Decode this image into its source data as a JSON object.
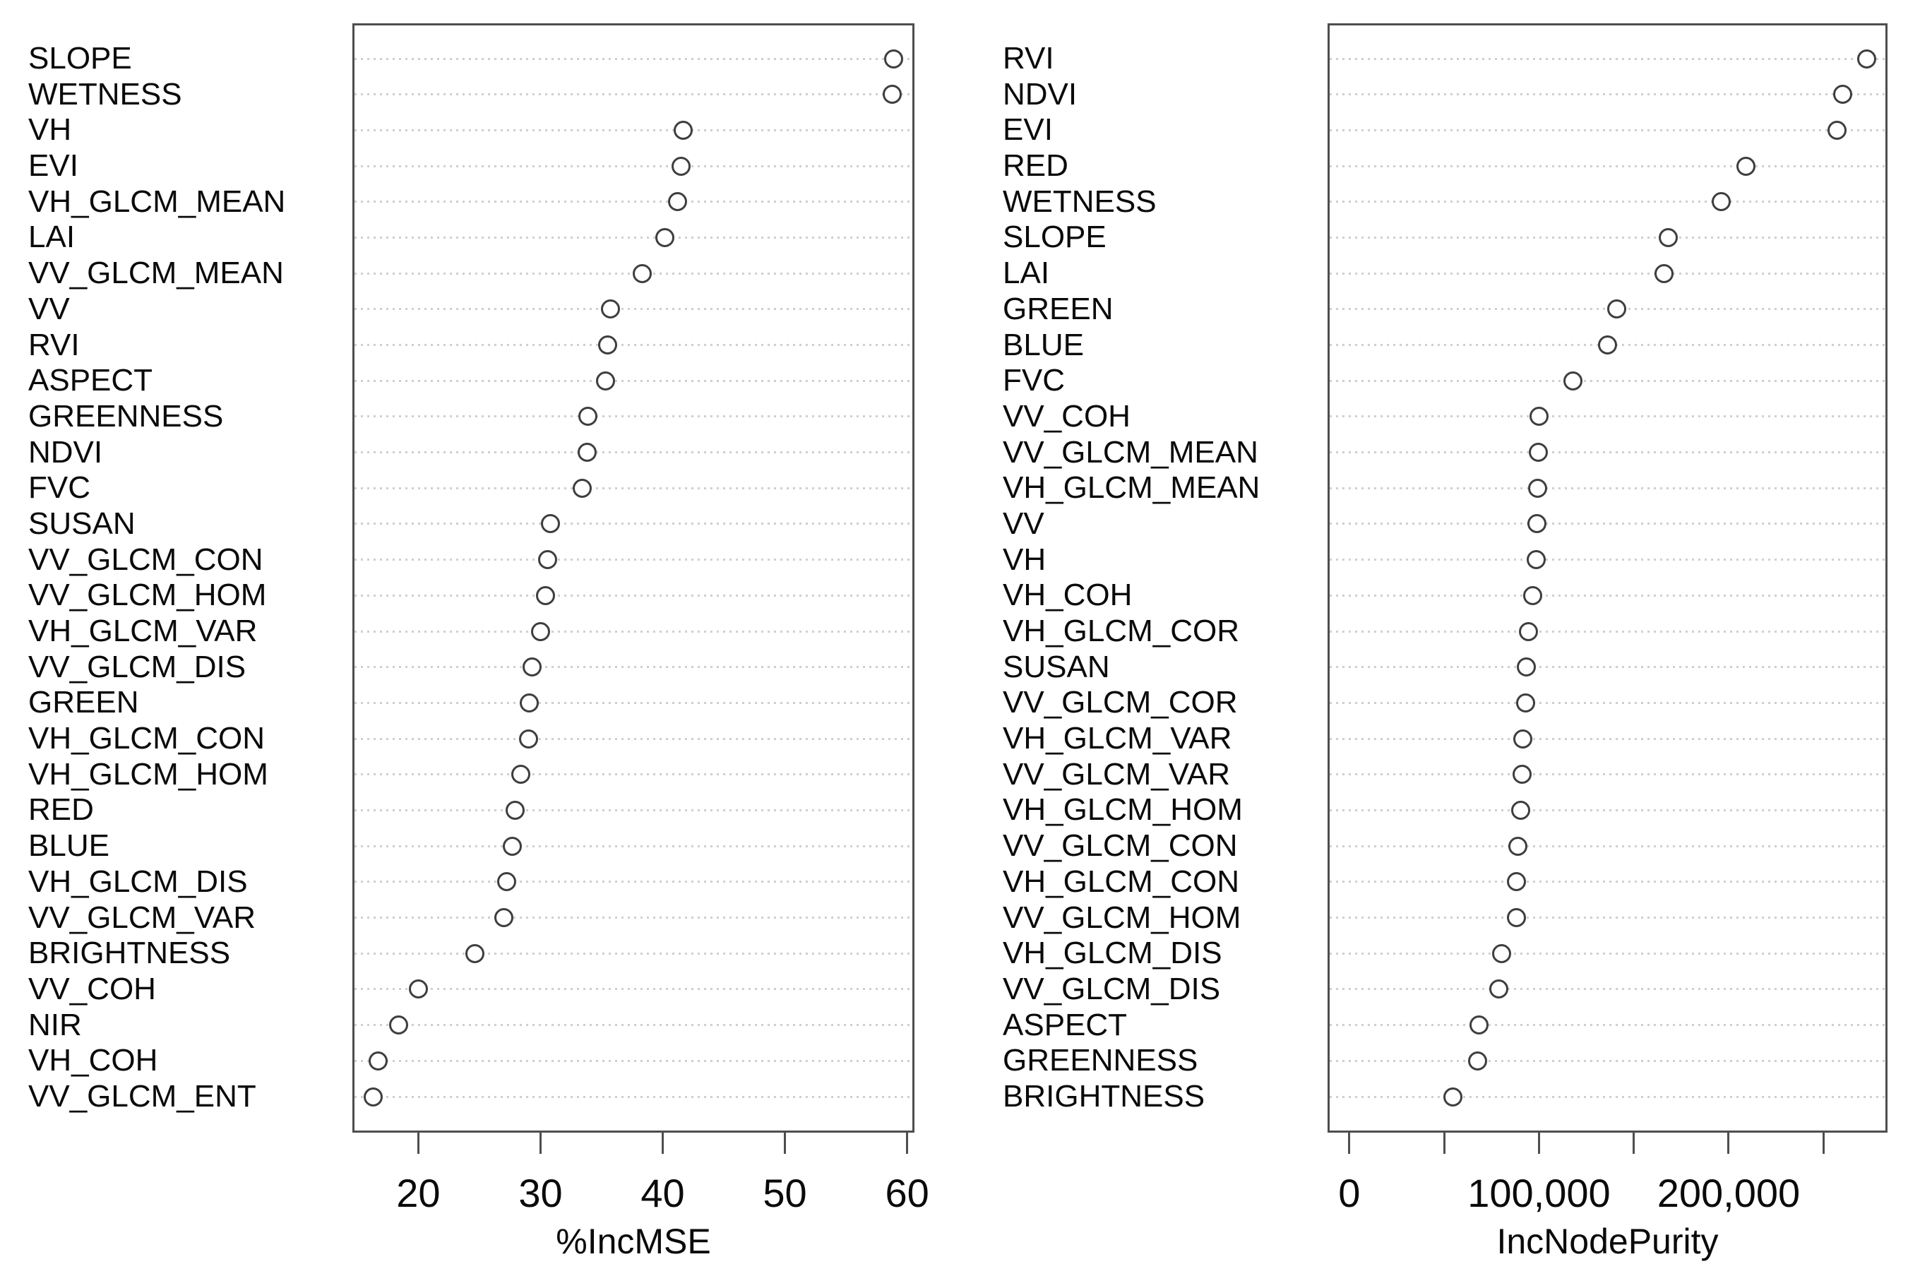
{
  "figure": {
    "description": "Random forest variable importance dot plots",
    "background": "#ffffff",
    "point_stroke_color": "#3e3e3e",
    "grid_color": "#cfcfcf",
    "box_color": "#4e4e4e",
    "text_color": "#0a0a0a"
  },
  "chart_data": [
    {
      "type": "scatter",
      "title": "",
      "xlabel": "%IncMSE",
      "ylabel": "",
      "legend": "none",
      "grid": "horizontal-dotted",
      "xlim": [
        14.6,
        60.6
      ],
      "xticks": {
        "values": [
          20,
          30,
          40,
          50,
          60
        ],
        "labels": [
          "20",
          "30",
          "40",
          "50",
          "60"
        ]
      },
      "categories": [
        "SLOPE",
        "WETNESS",
        "VH",
        "EVI",
        "VH_GLCM_MEAN",
        "LAI",
        "VV_GLCM_MEAN",
        "VV",
        "RVI",
        "ASPECT",
        "GREENNESS",
        "NDVI",
        "FVC",
        "SUSAN",
        "VV_GLCM_CON",
        "VV_GLCM_HOM",
        "VH_GLCM_VAR",
        "VV_GLCM_DIS",
        "GREEN",
        "VH_GLCM_CON",
        "VH_GLCM_HOM",
        "RED",
        "BLUE",
        "VH_GLCM_DIS",
        "VV_GLCM_VAR",
        "BRIGHTNESS",
        "VV_COH",
        "NIR",
        "VH_COH",
        "VV_GLCM_ENT"
      ],
      "values": [
        58.9,
        58.8,
        41.7,
        41.5,
        41.2,
        40.2,
        38.3,
        35.7,
        35.5,
        35.3,
        33.9,
        33.8,
        33.4,
        30.8,
        30.6,
        30.4,
        30.0,
        29.3,
        29.1,
        29.0,
        28.4,
        27.9,
        27.7,
        27.2,
        27.0,
        24.6,
        20.0,
        18.4,
        16.7,
        16.3
      ]
    },
    {
      "type": "scatter",
      "title": "",
      "xlabel": "IncNodePurity",
      "ylabel": "",
      "legend": "none",
      "grid": "horizontal-dotted",
      "xlim": [
        -11500,
        283800
      ],
      "xticks": {
        "values": [
          0,
          50000,
          100000,
          150000,
          200000,
          250000
        ],
        "labels": [
          "0",
          "",
          "100,000",
          "",
          "200,000",
          ""
        ]
      },
      "categories": [
        "RVI",
        "NDVI",
        "EVI",
        "RED",
        "WETNESS",
        "SLOPE",
        "LAI",
        "GREEN",
        "BLUE",
        "FVC",
        "VV_COH",
        "VV_GLCM_MEAN",
        "VH_GLCM_MEAN",
        "VV",
        "VH",
        "VH_COH",
        "VH_GLCM_COR",
        "SUSAN",
        "VV_GLCM_COR",
        "VH_GLCM_VAR",
        "VV_GLCM_VAR",
        "VH_GLCM_HOM",
        "VV_GLCM_CON",
        "VH_GLCM_CON",
        "VV_GLCM_HOM",
        "VH_GLCM_DIS",
        "VV_GLCM_DIS",
        "ASPECT",
        "GREENNESS",
        "BRIGHTNESS"
      ],
      "values": [
        273000,
        260000,
        257000,
        209000,
        196000,
        168000,
        166000,
        141000,
        136000,
        118000,
        99900,
        99600,
        99200,
        98900,
        98700,
        96800,
        94400,
        93300,
        92800,
        91500,
        91200,
        90500,
        89000,
        88200,
        88000,
        80200,
        78900,
        68500,
        67700,
        54500
      ]
    }
  ]
}
